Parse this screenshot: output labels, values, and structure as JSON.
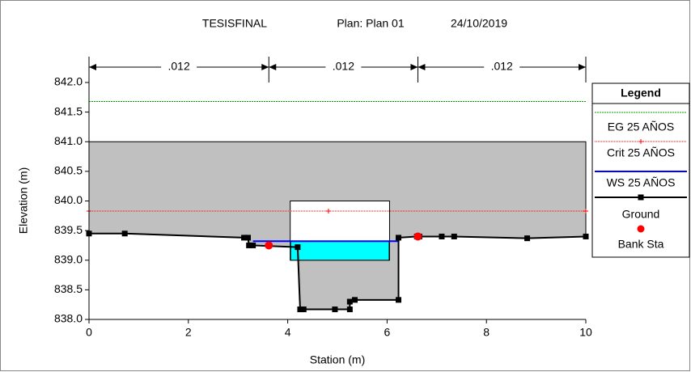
{
  "chart_data": {
    "type": "cross_section",
    "title": "TESISFINAL",
    "plan": "Plan: Plan 01",
    "date": "24/10/2019",
    "x_label": "Station (m)",
    "y_label": "Elevation (m)",
    "legend_title": "Legend",
    "xlim": [
      0,
      10
    ],
    "ylim": [
      838.0,
      842.0
    ],
    "xticks": [
      0,
      2,
      4,
      6,
      8,
      10
    ],
    "yticks": [
      {
        "value": 842.0,
        "label": "842.0"
      },
      841.5,
      {
        "value": 841.0,
        "label": "841.0"
      },
      840.5,
      {
        "value": 840.0,
        "label": "840.0"
      },
      839.5,
      {
        "value": 839.0,
        "label": "839.0"
      },
      838.5,
      {
        "value": 838.0,
        "label": "838.0"
      }
    ],
    "mannings": {
      "labels": [
        ".012",
        ".012",
        ".012"
      ],
      "stations": [
        0,
        3.62,
        6.62,
        10
      ]
    },
    "deck_top": 841.0,
    "culvert": {
      "x": [
        4.05,
        6.05
      ],
      "y": [
        839.0,
        840.0
      ]
    },
    "series": [
      {
        "name": "EG 25 AÑOS",
        "color": "#00a000",
        "x": [
          0,
          10
        ],
        "values": [
          841.68,
          841.68
        ]
      },
      {
        "name": "Crit 25 AÑOS",
        "color": "#ff0000",
        "x": [
          0,
          4.82,
          10
        ],
        "values": [
          839.83,
          839.83,
          839.83
        ]
      },
      {
        "name": "WS 25 AÑOS",
        "color": "#0000ff",
        "x": [
          3.3,
          6.23
        ],
        "values": [
          839.32,
          839.32
        ]
      },
      {
        "name": "Ground",
        "color": "#000000",
        "x": [
          0,
          0.72,
          3.12,
          3.2,
          3.22,
          3.3,
          4.2,
          4.25,
          4.32,
          4.95,
          5.25,
          5.25,
          5.35,
          6.23,
          6.23,
          6.6,
          6.65,
          7.1,
          7.35,
          8.82,
          10
        ],
        "values": [
          839.45,
          839.45,
          839.38,
          839.38,
          839.25,
          839.25,
          839.22,
          838.17,
          838.17,
          838.17,
          838.17,
          838.3,
          838.33,
          838.33,
          839.38,
          839.4,
          839.4,
          839.4,
          839.4,
          839.37,
          839.4
        ]
      },
      {
        "name": "Bank Sta",
        "color": "#ff0000",
        "x": [
          3.62,
          6.62
        ],
        "values": [
          839.25,
          839.4
        ]
      }
    ]
  }
}
